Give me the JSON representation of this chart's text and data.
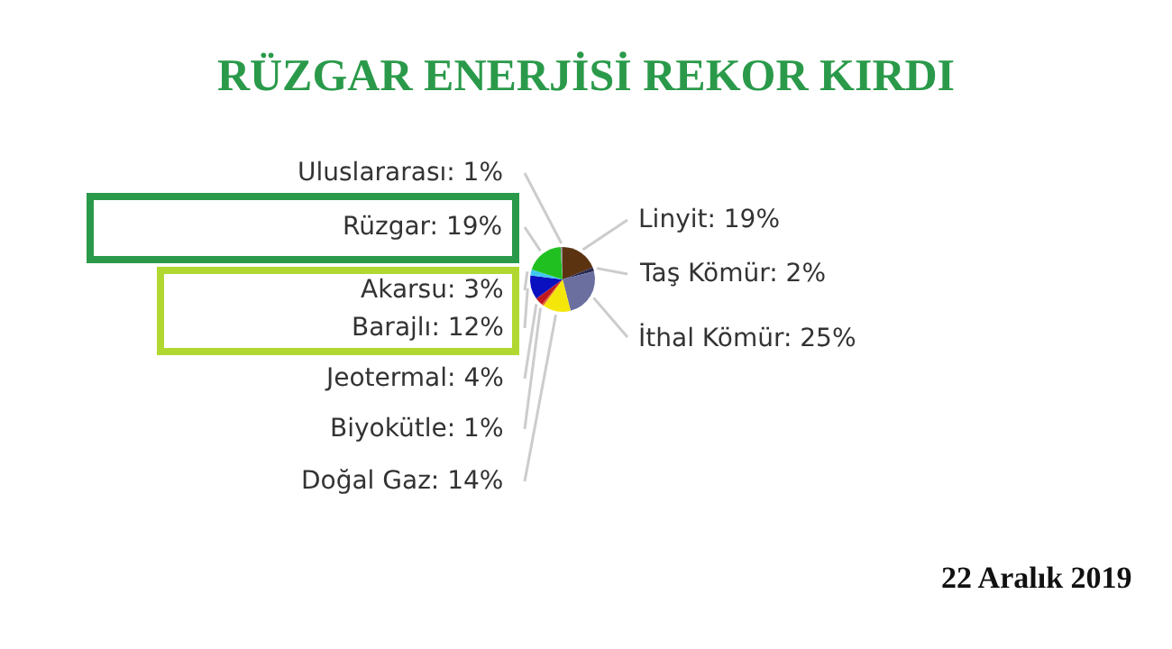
{
  "chart_data": {
    "type": "pie",
    "title": "RÜZGAR ENERJİSİ REKOR KIRDI",
    "categories": [
      "Linyit",
      "Taş Kömür",
      "İthal Kömür",
      "Doğal Gaz",
      "Biyokütle",
      "Jeotermal",
      "Barajlı",
      "Akarsu",
      "Rüzgar",
      "Uluslararası"
    ],
    "values": [
      19,
      2,
      25,
      14,
      1,
      4,
      12,
      3,
      19,
      1
    ],
    "value_labels": [
      "19%",
      "2%",
      "25%",
      "14%",
      "1%",
      "4%",
      "12%",
      "3%",
      "19%",
      "1%"
    ],
    "colors": [
      "#5c3310",
      "#2a2a50",
      "#6b6fa0",
      "#f5e60a",
      "#e8602a",
      "#c0181e",
      "#0a10c0",
      "#40c8f0",
      "#20c020",
      "#909090"
    ],
    "annotations": [
      "22 Aralık 2019"
    ]
  }
}
